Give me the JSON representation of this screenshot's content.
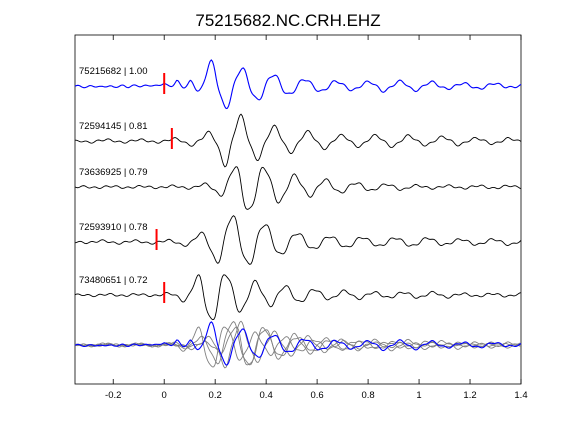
{
  "chart_data": {
    "type": "line",
    "title": "75215682.NC.CRH.EHZ",
    "xlabel": "",
    "ylabel": "",
    "xlim": [
      -0.35,
      1.4
    ],
    "xticks": [
      -0.2,
      0,
      0.2,
      0.4,
      0.6,
      0.8,
      1,
      1.2,
      1.4
    ],
    "xtick_labels": [
      "-0.2",
      "0",
      "0.2",
      "0.4",
      "0.6",
      "0.8",
      "1",
      "1.2",
      "1.4"
    ],
    "grid": false,
    "colors": {
      "reference": "#0000ff",
      "trace": "#000000",
      "overlay": "#808080",
      "pick": "#ff0000"
    },
    "traces": [
      {
        "label": "75215682 | 1.00",
        "color": "#0000ff",
        "pick_time": 0.0,
        "waveform": {
          "t": [
            -0.35,
            -0.3,
            -0.25,
            -0.2,
            -0.15,
            -0.1,
            -0.05,
            0.0,
            0.05,
            0.1,
            0.15,
            0.2,
            0.25,
            0.3,
            0.35,
            0.4,
            0.45,
            0.5,
            0.55,
            0.6,
            0.65,
            0.7,
            0.75,
            0.8,
            0.85,
            0.9,
            0.95,
            1.0,
            1.05,
            1.1,
            1.15,
            1.2,
            1.25,
            1.3,
            1.35,
            1.4
          ],
          "amp": [
            0.0,
            -0.05,
            0.05,
            -0.05,
            0.05,
            -0.05,
            0.05,
            -0.1,
            0.2,
            -0.35,
            0.6,
            1.0,
            0.75,
            0.65,
            0.55,
            0.45,
            0.4,
            0.3,
            0.25,
            0.2,
            0.2,
            0.15,
            0.15,
            0.15,
            0.2,
            0.15,
            0.2,
            0.15,
            0.15,
            0.1,
            0.1,
            0.1,
            0.1,
            0.1,
            0.05,
            0.05
          ]
        }
      },
      {
        "label": "72594145 | 0.81",
        "color": "#000000",
        "pick_time": 0.03,
        "waveform": {
          "t": [
            -0.35,
            -0.3,
            -0.25,
            -0.2,
            -0.15,
            -0.1,
            -0.05,
            0.0,
            0.05,
            0.1,
            0.15,
            0.2,
            0.25,
            0.3,
            0.35,
            0.4,
            0.45,
            0.5,
            0.55,
            0.6,
            0.65,
            0.7,
            0.75,
            0.8,
            0.85,
            0.9,
            0.95,
            1.0,
            1.05,
            1.1,
            1.15,
            1.2,
            1.25,
            1.3,
            1.35,
            1.4
          ],
          "amp": [
            0.0,
            0.05,
            0.05,
            0.05,
            0.05,
            0.05,
            0.05,
            0.05,
            0.1,
            0.15,
            0.2,
            0.45,
            1.0,
            0.9,
            0.7,
            0.55,
            0.5,
            0.4,
            0.35,
            0.3,
            0.25,
            0.2,
            0.2,
            0.2,
            0.2,
            0.2,
            0.2,
            0.15,
            0.15,
            0.15,
            0.15,
            0.1,
            0.1,
            0.1,
            0.1,
            0.05
          ]
        }
      },
      {
        "label": "73636925 | 0.79",
        "color": "#000000",
        "pick_time": null,
        "waveform": {
          "t": [
            -0.35,
            -0.3,
            -0.25,
            -0.2,
            -0.15,
            -0.1,
            -0.05,
            0.0,
            0.05,
            0.1,
            0.15,
            0.2,
            0.25,
            0.3,
            0.35,
            0.4,
            0.45,
            0.5,
            0.55,
            0.6,
            0.65,
            0.7,
            0.75,
            0.8,
            0.85,
            0.9,
            0.95,
            1.0,
            1.05,
            1.1,
            1.15,
            1.2,
            1.25,
            1.3,
            1.35,
            1.4
          ],
          "amp": [
            0.0,
            0.03,
            0.03,
            0.03,
            0.03,
            0.03,
            0.03,
            0.03,
            0.05,
            0.05,
            0.1,
            0.2,
            0.5,
            1.0,
            0.85,
            0.7,
            0.55,
            0.45,
            0.35,
            0.3,
            0.25,
            0.2,
            0.15,
            0.15,
            0.1,
            0.1,
            0.1,
            0.05,
            0.05,
            0.05,
            0.05,
            0.05,
            0.05,
            0.05,
            0.05,
            0.03
          ]
        }
      },
      {
        "label": "72593910 | 0.78",
        "color": "#000000",
        "pick_time": -0.03,
        "waveform": {
          "t": [
            -0.35,
            -0.3,
            -0.25,
            -0.2,
            -0.15,
            -0.1,
            -0.05,
            0.0,
            0.05,
            0.1,
            0.15,
            0.2,
            0.25,
            0.3,
            0.35,
            0.4,
            0.45,
            0.5,
            0.55,
            0.6,
            0.65,
            0.7,
            0.75,
            0.8,
            0.85,
            0.9,
            0.95,
            1.0,
            1.05,
            1.1,
            1.15,
            1.2,
            1.25,
            1.3,
            1.35,
            1.4
          ],
          "amp": [
            0.0,
            0.03,
            0.05,
            0.05,
            0.05,
            0.05,
            0.05,
            0.05,
            0.1,
            0.15,
            0.35,
            0.7,
            1.0,
            0.9,
            0.8,
            0.65,
            0.5,
            0.35,
            0.3,
            0.25,
            0.2,
            0.2,
            0.2,
            0.15,
            0.15,
            0.15,
            0.15,
            0.15,
            0.15,
            0.1,
            0.1,
            0.1,
            0.1,
            0.1,
            0.1,
            0.1
          ]
        }
      },
      {
        "label": "73480651 | 0.72",
        "color": "#000000",
        "pick_time": 0.0,
        "waveform": {
          "t": [
            -0.35,
            -0.3,
            -0.25,
            -0.2,
            -0.15,
            -0.1,
            -0.05,
            0.0,
            0.05,
            0.1,
            0.15,
            0.2,
            0.25,
            0.3,
            0.35,
            0.4,
            0.45,
            0.5,
            0.55,
            0.6,
            0.65,
            0.7,
            0.75,
            0.8,
            0.85,
            0.9,
            0.95,
            1.0,
            1.05,
            1.1,
            1.15,
            1.2,
            1.25,
            1.3,
            1.35,
            1.4
          ],
          "amp": [
            0.0,
            0.03,
            0.03,
            0.03,
            0.03,
            0.03,
            0.03,
            0.05,
            0.1,
            0.35,
            0.9,
            1.0,
            0.75,
            0.6,
            0.5,
            0.4,
            0.35,
            0.3,
            0.25,
            0.2,
            0.15,
            0.15,
            0.15,
            0.1,
            0.1,
            0.1,
            0.1,
            0.1,
            0.1,
            0.1,
            0.05,
            0.05,
            0.05,
            0.05,
            0.05,
            0.05
          ]
        }
      }
    ],
    "overlay": {
      "description_label": ""
    }
  }
}
